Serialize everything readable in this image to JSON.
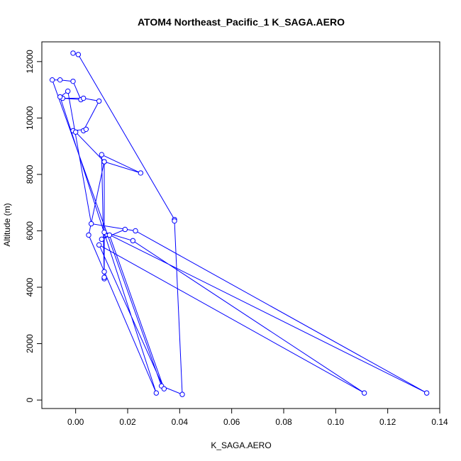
{
  "chart_data": {
    "type": "line",
    "title": "ATOM4 Northeast_Pacific_1 K_SAGA.AERO",
    "xlabel": "K_SAGA.AERO",
    "ylabel": "Altitude (m)",
    "xlim": [
      -0.013,
      0.14
    ],
    "ylim": [
      -300,
      12700
    ],
    "x_ticks": [
      0.0,
      0.02,
      0.04,
      0.06,
      0.08,
      0.1,
      0.12,
      0.14
    ],
    "x_tick_labels": [
      "0.00",
      "0.02",
      "0.04",
      "0.06",
      "0.08",
      "0.10",
      "0.12",
      "0.14"
    ],
    "y_ticks": [
      0,
      2000,
      4000,
      6000,
      8000,
      10000,
      12000
    ],
    "y_tick_labels": [
      "0",
      "2000",
      "4000",
      "6000",
      "8000",
      "10000",
      "12000"
    ],
    "grid": false,
    "series_color": "#0000ff",
    "series": [
      {
        "x": [
          -0.001,
          0.001,
          0.038,
          0.038,
          0.041,
          0.033,
          -0.009,
          -0.006,
          -0.001,
          0.002,
          -0.005,
          0.003,
          0.009,
          0.003,
          0.004,
          -0.001,
          0.0,
          0.011,
          0.011,
          0.011,
          0.011,
          0.01,
          0.025,
          0.011,
          0.005,
          0.031,
          -0.006,
          -0.003,
          0.006,
          0.023,
          0.135,
          0.011,
          0.022,
          0.111,
          0.009,
          0.034,
          0.013,
          0.01,
          0.019
        ],
        "y": [
          12300,
          12250,
          6400,
          6350,
          200,
          500,
          11350,
          11350,
          11300,
          10650,
          10700,
          10700,
          10600,
          9550,
          9600,
          9550,
          9500,
          8450,
          4550,
          4300,
          4350,
          8700,
          8050,
          8450,
          5850,
          250,
          10750,
          10950,
          6250,
          6000,
          250,
          5950,
          5650,
          250,
          5500,
          400,
          5850,
          5700,
          6050
        ]
      }
    ]
  }
}
